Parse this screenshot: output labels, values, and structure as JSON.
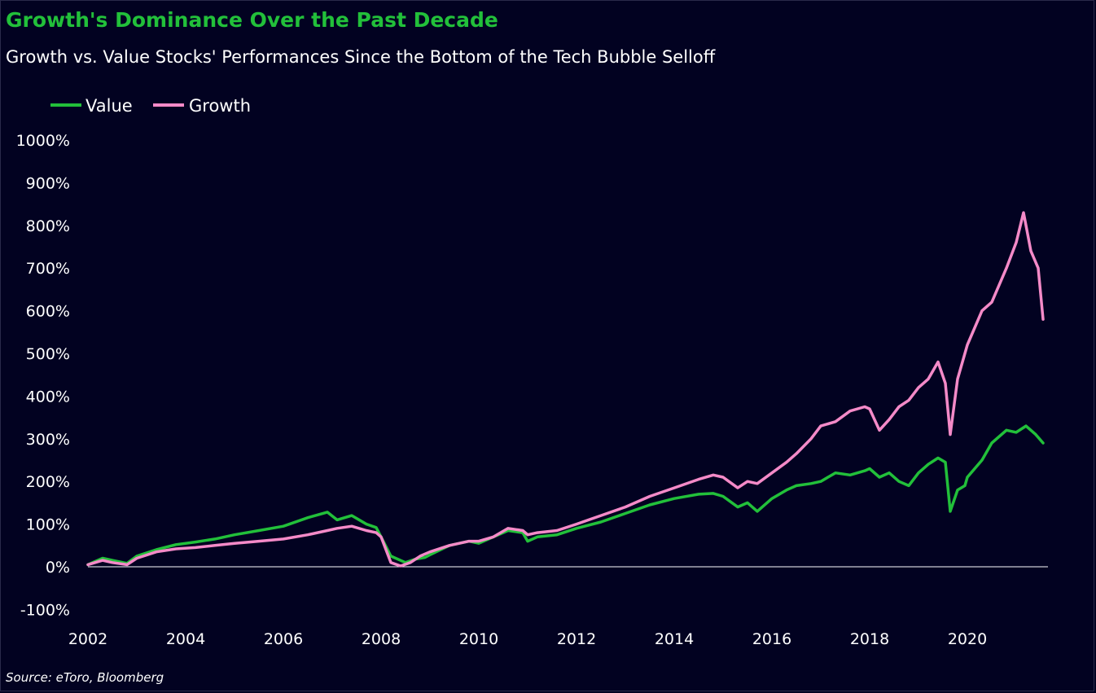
{
  "title": "Growth's Dominance Over the Past Decade",
  "subtitle": "Growth vs. Value Stocks' Performances Since the Bottom of the Tech Bubble Selloff",
  "source": "Source: eToro, Bloomberg",
  "colors": {
    "background": "#020221",
    "title": "#22c03a",
    "value": "#22c03a",
    "growth": "#f48ac8",
    "zero_line": "#ffffff"
  },
  "chart_data": {
    "type": "line",
    "title": "Growth's Dominance Over the Past Decade",
    "subtitle": "Growth vs. Value Stocks' Performances Since the Bottom of the Tech Bubble Selloff",
    "xlabel": "",
    "ylabel": "",
    "xlim": [
      2002,
      2021.6
    ],
    "ylim": [
      -100,
      1000
    ],
    "x_ticks": [
      "2002",
      "2004",
      "2006",
      "2008",
      "2010",
      "2012",
      "2014",
      "2016",
      "2018",
      "2020"
    ],
    "y_ticks": [
      "1000%",
      "900%",
      "800%",
      "700%",
      "600%",
      "500%",
      "400%",
      "300%",
      "200%",
      "100%",
      "0%",
      "-100%"
    ],
    "grid": false,
    "legend_position": "top-left",
    "series": [
      {
        "name": "Value",
        "color": "#22c03a",
        "points": [
          [
            2002.0,
            5
          ],
          [
            2002.3,
            20
          ],
          [
            2002.5,
            15
          ],
          [
            2002.8,
            8
          ],
          [
            2003.0,
            25
          ],
          [
            2003.4,
            40
          ],
          [
            2003.8,
            52
          ],
          [
            2004.2,
            58
          ],
          [
            2004.6,
            65
          ],
          [
            2005.0,
            75
          ],
          [
            2005.5,
            85
          ],
          [
            2006.0,
            95
          ],
          [
            2006.5,
            115
          ],
          [
            2006.9,
            128
          ],
          [
            2007.1,
            110
          ],
          [
            2007.4,
            120
          ],
          [
            2007.7,
            100
          ],
          [
            2007.9,
            92
          ],
          [
            2008.0,
            70
          ],
          [
            2008.2,
            25
          ],
          [
            2008.5,
            10
          ],
          [
            2008.7,
            18
          ],
          [
            2008.9,
            22
          ],
          [
            2009.0,
            28
          ],
          [
            2009.4,
            50
          ],
          [
            2009.8,
            60
          ],
          [
            2010.0,
            55
          ],
          [
            2010.3,
            70
          ],
          [
            2010.6,
            85
          ],
          [
            2010.9,
            80
          ],
          [
            2011.0,
            60
          ],
          [
            2011.2,
            70
          ],
          [
            2011.6,
            75
          ],
          [
            2012.0,
            90
          ],
          [
            2012.5,
            105
          ],
          [
            2013.0,
            125
          ],
          [
            2013.5,
            145
          ],
          [
            2014.0,
            160
          ],
          [
            2014.5,
            170
          ],
          [
            2014.8,
            172
          ],
          [
            2015.0,
            165
          ],
          [
            2015.3,
            140
          ],
          [
            2015.5,
            150
          ],
          [
            2015.7,
            130
          ],
          [
            2016.0,
            160
          ],
          [
            2016.3,
            180
          ],
          [
            2016.5,
            190
          ],
          [
            2016.8,
            195
          ],
          [
            2017.0,
            200
          ],
          [
            2017.3,
            220
          ],
          [
            2017.6,
            215
          ],
          [
            2017.9,
            225
          ],
          [
            2018.0,
            230
          ],
          [
            2018.2,
            210
          ],
          [
            2018.4,
            220
          ],
          [
            2018.6,
            200
          ],
          [
            2018.8,
            190
          ],
          [
            2019.0,
            220
          ],
          [
            2019.2,
            240
          ],
          [
            2019.4,
            255
          ],
          [
            2019.55,
            245
          ],
          [
            2019.65,
            130
          ],
          [
            2019.8,
            180
          ],
          [
            2019.95,
            190
          ],
          [
            2020.0,
            210
          ],
          [
            2020.3,
            250
          ],
          [
            2020.5,
            290
          ],
          [
            2020.8,
            320
          ],
          [
            2021.0,
            315
          ],
          [
            2021.2,
            330
          ],
          [
            2021.4,
            310
          ],
          [
            2021.55,
            290
          ]
        ]
      },
      {
        "name": "Growth",
        "color": "#f48ac8",
        "points": [
          [
            2002.0,
            5
          ],
          [
            2002.3,
            15
          ],
          [
            2002.5,
            10
          ],
          [
            2002.8,
            5
          ],
          [
            2003.0,
            20
          ],
          [
            2003.4,
            35
          ],
          [
            2003.8,
            42
          ],
          [
            2004.2,
            45
          ],
          [
            2004.6,
            50
          ],
          [
            2005.0,
            55
          ],
          [
            2005.5,
            60
          ],
          [
            2006.0,
            65
          ],
          [
            2006.5,
            75
          ],
          [
            2006.9,
            85
          ],
          [
            2007.1,
            90
          ],
          [
            2007.4,
            95
          ],
          [
            2007.7,
            85
          ],
          [
            2007.9,
            80
          ],
          [
            2008.0,
            70
          ],
          [
            2008.2,
            10
          ],
          [
            2008.4,
            2
          ],
          [
            2008.6,
            10
          ],
          [
            2008.8,
            25
          ],
          [
            2009.0,
            35
          ],
          [
            2009.4,
            50
          ],
          [
            2009.8,
            60
          ],
          [
            2010.0,
            60
          ],
          [
            2010.3,
            70
          ],
          [
            2010.6,
            90
          ],
          [
            2010.9,
            85
          ],
          [
            2011.0,
            75
          ],
          [
            2011.2,
            80
          ],
          [
            2011.6,
            85
          ],
          [
            2012.0,
            100
          ],
          [
            2012.5,
            120
          ],
          [
            2013.0,
            140
          ],
          [
            2013.5,
            165
          ],
          [
            2014.0,
            185
          ],
          [
            2014.5,
            205
          ],
          [
            2014.8,
            215
          ],
          [
            2015.0,
            210
          ],
          [
            2015.3,
            185
          ],
          [
            2015.5,
            200
          ],
          [
            2015.7,
            195
          ],
          [
            2016.0,
            220
          ],
          [
            2016.3,
            245
          ],
          [
            2016.5,
            265
          ],
          [
            2016.8,
            300
          ],
          [
            2017.0,
            330
          ],
          [
            2017.3,
            340
          ],
          [
            2017.6,
            365
          ],
          [
            2017.9,
            375
          ],
          [
            2018.0,
            370
          ],
          [
            2018.2,
            320
          ],
          [
            2018.4,
            345
          ],
          [
            2018.6,
            375
          ],
          [
            2018.8,
            390
          ],
          [
            2019.0,
            420
          ],
          [
            2019.2,
            440
          ],
          [
            2019.4,
            480
          ],
          [
            2019.55,
            430
          ],
          [
            2019.65,
            310
          ],
          [
            2019.8,
            440
          ],
          [
            2019.95,
            500
          ],
          [
            2020.0,
            520
          ],
          [
            2020.3,
            600
          ],
          [
            2020.5,
            620
          ],
          [
            2020.8,
            700
          ],
          [
            2021.0,
            760
          ],
          [
            2021.15,
            830
          ],
          [
            2021.3,
            740
          ],
          [
            2021.45,
            700
          ],
          [
            2021.55,
            580
          ]
        ]
      }
    ]
  }
}
